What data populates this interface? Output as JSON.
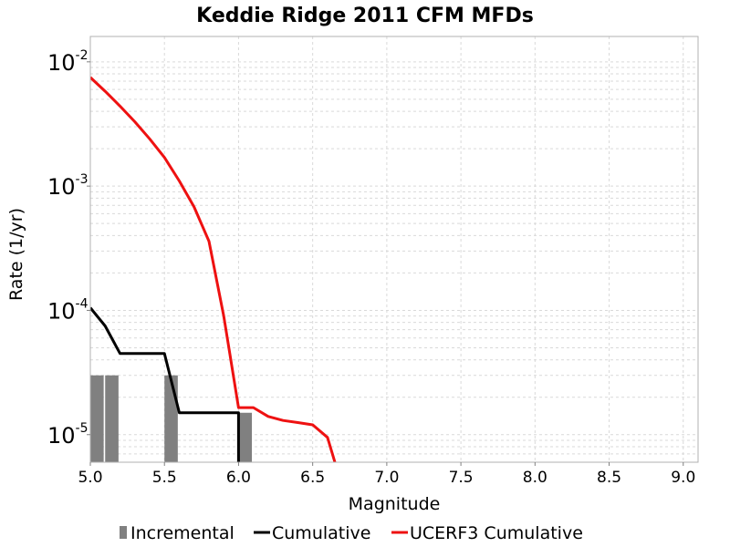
{
  "chart_data": {
    "type": "line",
    "title": "Keddie Ridge 2011 CFM MFDs",
    "xlabel": "Magnitude",
    "ylabel": "Rate (1/yr)",
    "xlim": [
      5.0,
      9.1
    ],
    "ylim": [
      6e-06,
      0.016
    ],
    "yscale": "log",
    "grid": true,
    "legend_position": "bottom",
    "x_ticks": [
      "5.0",
      "5.5",
      "6.0",
      "6.5",
      "7.0",
      "7.5",
      "8.0",
      "8.5",
      "9.0"
    ],
    "y_ticks": [
      {
        "base": "10",
        "exp": "-5",
        "value": 1e-05
      },
      {
        "base": "10",
        "exp": "-4",
        "value": 0.0001
      },
      {
        "base": "10",
        "exp": "-3",
        "value": 0.001
      },
      {
        "base": "10",
        "exp": "-2",
        "value": 0.01
      }
    ],
    "series": [
      {
        "name": "Incremental",
        "kind": "bar",
        "color": "#808080",
        "x": [
          5.0,
          5.1,
          5.5,
          6.0
        ],
        "y": [
          3e-05,
          3e-05,
          3e-05,
          1.5e-05
        ]
      },
      {
        "name": "Cumulative",
        "kind": "line",
        "color": "#000000",
        "x": [
          5.0,
          5.1,
          5.2,
          5.5,
          5.6,
          6.0,
          6.0
        ],
        "y": [
          0.000105,
          7.5e-05,
          4.5e-05,
          4.5e-05,
          1.5e-05,
          1.5e-05,
          5e-06
        ]
      },
      {
        "name": "UCERF3 Cumulative",
        "kind": "line",
        "color": "#ee1111",
        "x": [
          5.0,
          5.1,
          5.2,
          5.3,
          5.4,
          5.5,
          5.6,
          5.7,
          5.8,
          5.9,
          6.0,
          6.1,
          6.2,
          6.3,
          6.4,
          6.5,
          6.6,
          6.65
        ],
        "y": [
          0.0075,
          0.0058,
          0.0044,
          0.0033,
          0.0024,
          0.0017,
          0.0011,
          0.00068,
          0.00036,
          9e-05,
          1.65e-05,
          1.65e-05,
          1.4e-05,
          1.3e-05,
          1.25e-05,
          1.2e-05,
          9.5e-06,
          6e-06
        ]
      }
    ]
  }
}
